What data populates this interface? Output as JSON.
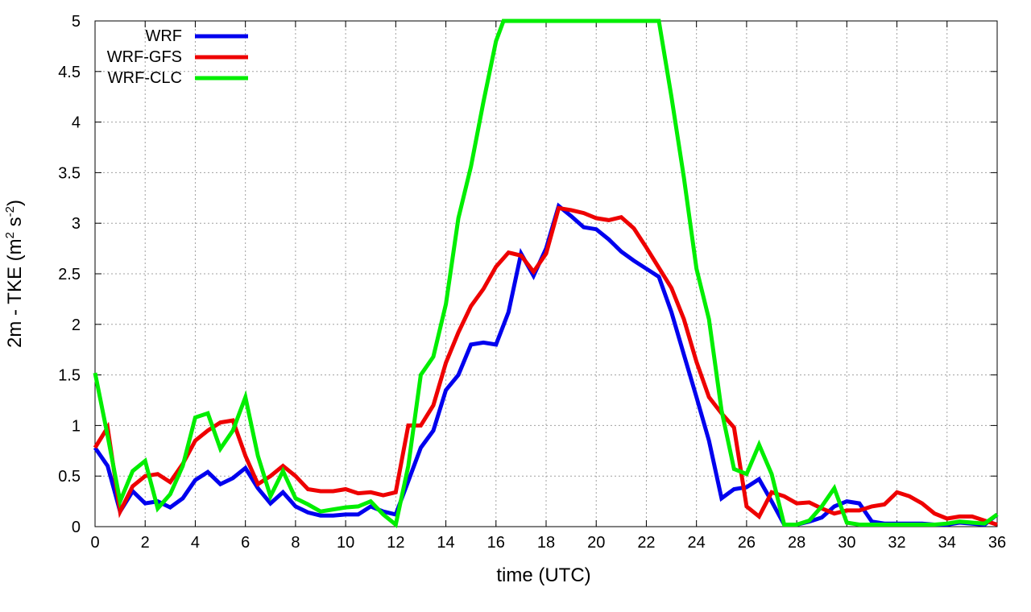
{
  "chart_data": {
    "type": "line",
    "xlabel": "time (UTC)",
    "ylabel_main": "2m - TKE (m",
    "ylabel_exp1": "2",
    "ylabel_mid": " s",
    "ylabel_exp2": "-2",
    "ylabel_end": ")",
    "xlim": [
      0,
      36
    ],
    "ylim": [
      0,
      5
    ],
    "xticks": [
      0,
      2,
      4,
      6,
      8,
      10,
      12,
      14,
      16,
      18,
      20,
      22,
      24,
      26,
      28,
      30,
      32,
      34,
      36
    ],
    "yticks": [
      0,
      0.5,
      1,
      1.5,
      2,
      2.5,
      3,
      3.5,
      4,
      4.5,
      5
    ],
    "ytick_labels": [
      "0",
      "0.5",
      "1",
      "1.5",
      "2",
      "2.5",
      "3",
      "3.5",
      "4",
      "4.5",
      "5"
    ],
    "grid": true,
    "legend_position": "top-left",
    "series": [
      {
        "name": "WRF",
        "color": "#0000ee",
        "x": [
          0,
          0.5,
          1,
          1.5,
          2,
          2.5,
          3,
          3.5,
          4,
          4.5,
          5,
          5.5,
          6,
          6.5,
          7,
          7.5,
          8,
          8.5,
          9,
          9.5,
          10,
          10.5,
          11,
          11.5,
          12,
          12.5,
          13,
          13.5,
          14,
          14.5,
          15,
          15.5,
          16,
          16.5,
          17,
          17.5,
          18,
          18.5,
          19,
          19.5,
          20,
          20.5,
          21,
          21.5,
          22,
          22.5,
          23,
          23.5,
          24,
          24.5,
          25,
          25.5,
          26,
          26.5,
          27,
          27.5,
          28,
          28.5,
          29,
          29.5,
          30,
          30.5,
          31,
          31.5,
          32,
          32.5,
          33,
          33.5,
          34,
          34.5,
          35,
          35.5,
          36
        ],
        "y": [
          0.78,
          0.6,
          0.15,
          0.35,
          0.23,
          0.25,
          0.19,
          0.28,
          0.46,
          0.54,
          0.42,
          0.48,
          0.58,
          0.38,
          0.23,
          0.34,
          0.2,
          0.14,
          0.11,
          0.11,
          0.12,
          0.12,
          0.2,
          0.15,
          0.12,
          0.45,
          0.78,
          0.95,
          1.35,
          1.5,
          1.8,
          1.82,
          1.8,
          2.12,
          2.7,
          2.48,
          2.75,
          3.17,
          3.07,
          2.96,
          2.94,
          2.84,
          2.72,
          2.63,
          2.55,
          2.47,
          2.12,
          1.7,
          1.28,
          0.85,
          0.28,
          0.37,
          0.39,
          0.47,
          0.25,
          0.02,
          0.02,
          0.05,
          0.09,
          0.2,
          0.25,
          0.23,
          0.05,
          0.03,
          0.03,
          0.03,
          0.03,
          0.02,
          0.02,
          0.04,
          0.03,
          0.02,
          0.12
        ]
      },
      {
        "name": "WRF-GFS",
        "color": "#ee0000",
        "x": [
          0,
          0.5,
          1,
          1.5,
          2,
          2.5,
          3,
          3.5,
          4,
          4.5,
          5,
          5.5,
          6,
          6.5,
          7,
          7.5,
          8,
          8.5,
          9,
          9.5,
          10,
          10.5,
          11,
          11.5,
          12,
          12.5,
          13,
          13.5,
          14,
          14.5,
          15,
          15.5,
          16,
          16.5,
          17,
          17.5,
          18,
          18.5,
          19,
          19.5,
          20,
          20.5,
          21,
          21.5,
          22,
          22.5,
          23,
          23.5,
          24,
          24.5,
          25,
          25.5,
          26,
          26.5,
          27,
          27.5,
          28,
          28.5,
          29,
          29.5,
          30,
          30.5,
          31,
          31.5,
          32,
          32.5,
          33,
          33.5,
          34,
          34.5,
          35,
          35.5,
          36
        ],
        "y": [
          0.78,
          0.98,
          0.15,
          0.4,
          0.5,
          0.52,
          0.44,
          0.62,
          0.85,
          0.95,
          1.03,
          1.05,
          0.7,
          0.42,
          0.5,
          0.6,
          0.5,
          0.37,
          0.35,
          0.35,
          0.37,
          0.33,
          0.34,
          0.31,
          0.34,
          1.0,
          1.0,
          1.2,
          1.62,
          1.92,
          2.18,
          2.35,
          2.57,
          2.71,
          2.68,
          2.52,
          2.7,
          3.15,
          3.13,
          3.1,
          3.05,
          3.03,
          3.06,
          2.95,
          2.76,
          2.56,
          2.36,
          2.05,
          1.63,
          1.28,
          1.12,
          0.98,
          0.2,
          0.1,
          0.34,
          0.3,
          0.23,
          0.24,
          0.18,
          0.13,
          0.16,
          0.16,
          0.2,
          0.22,
          0.34,
          0.3,
          0.23,
          0.13,
          0.08,
          0.1,
          0.1,
          0.06,
          0.02
        ]
      },
      {
        "name": "WRF-CLC",
        "color": "#00ee00",
        "x": [
          0,
          0.5,
          1,
          1.5,
          2,
          2.5,
          3,
          3.5,
          4,
          4.5,
          5,
          5.5,
          6,
          6.5,
          7,
          7.5,
          8,
          8.5,
          9,
          9.5,
          10,
          10.5,
          11,
          11.5,
          12,
          12.5,
          13,
          13.5,
          14,
          14.5,
          15,
          15.5,
          16,
          16.3,
          22.5,
          23,
          23.5,
          24,
          24.5,
          25,
          25.5,
          26,
          26.5,
          27,
          27.5,
          28,
          28.5,
          29,
          29.5,
          30,
          30.5,
          31,
          31.5,
          32,
          32.5,
          33,
          33.5,
          34,
          34.5,
          35,
          35.5,
          36
        ],
        "y": [
          1.52,
          0.9,
          0.25,
          0.55,
          0.65,
          0.18,
          0.32,
          0.6,
          1.08,
          1.12,
          0.77,
          0.95,
          1.28,
          0.7,
          0.3,
          0.55,
          0.28,
          0.22,
          0.15,
          0.17,
          0.19,
          0.2,
          0.25,
          0.12,
          0.02,
          0.6,
          1.5,
          1.68,
          2.2,
          3.05,
          3.56,
          4.2,
          4.8,
          5.0,
          5.0,
          4.25,
          3.45,
          2.55,
          2.05,
          1.15,
          0.57,
          0.52,
          0.81,
          0.52,
          0.02,
          0.02,
          0.06,
          0.2,
          0.38,
          0.04,
          0.02,
          0.02,
          0.02,
          0.02,
          0.02,
          0.02,
          0.02,
          0.03,
          0.05,
          0.04,
          0.03,
          0.12
        ]
      }
    ]
  }
}
